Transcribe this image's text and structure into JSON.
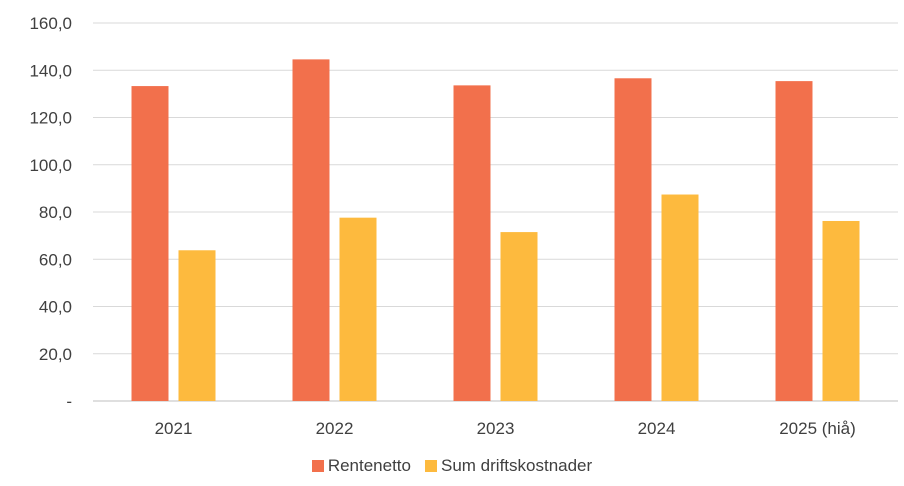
{
  "chart_data": {
    "type": "bar",
    "title": "",
    "xlabel": "",
    "ylabel": "",
    "categories": [
      "2021",
      "2022",
      "2023",
      "2024",
      "2025 (hiå)"
    ],
    "series": [
      {
        "name": "Rentenetto",
        "color": "#F2704C",
        "values": [
          133.3,
          144.6,
          133.6,
          136.6,
          135.4
        ]
      },
      {
        "name": "Sum driftskostnader",
        "color": "#FDBA3E",
        "values": [
          63.8,
          77.6,
          71.5,
          87.4,
          76.2
        ]
      }
    ],
    "ylim": [
      0,
      160
    ],
    "yticks": [
      0,
      20,
      40,
      60,
      80,
      100,
      120,
      140,
      160
    ],
    "ytick_labels": [
      "-",
      "20,0",
      "40,0",
      "60,0",
      "80,0",
      "100,0",
      "120,0",
      "140,0",
      "160,0"
    ],
    "grid": true,
    "legend_position": "bottom"
  }
}
